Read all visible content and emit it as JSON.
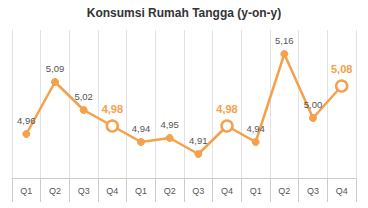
{
  "chart_data": {
    "type": "line",
    "title": "Konsumsi Rumah Tangga (y-on-y)",
    "categories": [
      "Q1",
      "Q2",
      "Q3",
      "Q4",
      "Q1",
      "Q2",
      "Q3",
      "Q4",
      "Q1",
      "Q2",
      "Q3",
      "Q4"
    ],
    "values": [
      4.96,
      5.09,
      5.02,
      4.98,
      4.94,
      4.95,
      4.91,
      4.98,
      4.94,
      5.16,
      5.0,
      5.08
    ],
    "value_labels": [
      "4,96",
      "5,09",
      "5,02",
      "4,98",
      "4,94",
      "4,95",
      "4,91",
      "4,98",
      "4,94",
      "5,16",
      "5,00",
      "5,08"
    ],
    "color": "#f5a04a",
    "ylim": [
      4.85,
      5.22
    ],
    "data_labels": true,
    "grid": true,
    "tick_labels": "x",
    "marker": "circle"
  }
}
